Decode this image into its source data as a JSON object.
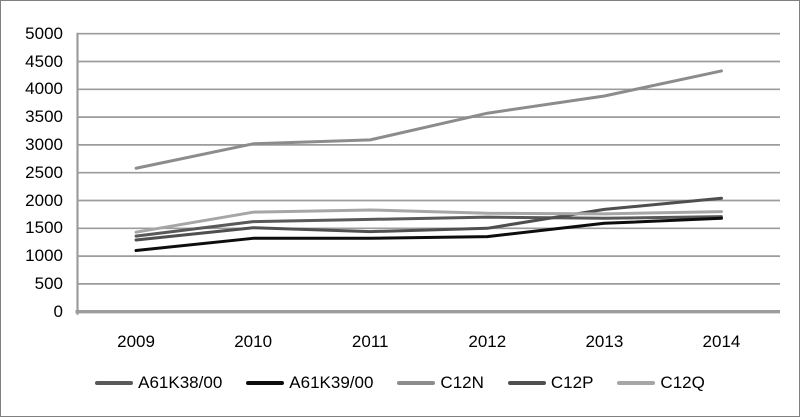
{
  "chart_data": {
    "type": "line",
    "title": "",
    "xlabel": "",
    "ylabel": "",
    "categories": [
      "2009",
      "2010",
      "2011",
      "2012",
      "2013",
      "2014"
    ],
    "series": [
      {
        "name": "A61K38/00",
        "color": "#595959",
        "values": [
          1360,
          1620,
          1660,
          1700,
          1680,
          1710
        ]
      },
      {
        "name": "A61K39/00",
        "color": "#0d0d0d",
        "values": [
          1100,
          1320,
          1320,
          1350,
          1590,
          1680
        ]
      },
      {
        "name": "C12N",
        "color": "#8c8c8c",
        "values": [
          2580,
          3020,
          3090,
          3570,
          3880,
          4330
        ]
      },
      {
        "name": "C12P",
        "color": "#4f4f4f",
        "values": [
          1290,
          1510,
          1440,
          1500,
          1840,
          2040
        ]
      },
      {
        "name": "C12Q",
        "color": "#a6a6a6",
        "values": [
          1430,
          1790,
          1830,
          1770,
          1760,
          1800
        ]
      }
    ],
    "ylim": [
      0,
      5000
    ],
    "ytick_step": 500,
    "yticks": [
      0,
      500,
      1000,
      1500,
      2000,
      2500,
      3000,
      3500,
      4000,
      4500,
      5000
    ],
    "grid": true,
    "gridline_color": "#9c9c9c",
    "axis_line_color": "#9c9c9c",
    "legend_position": "bottom"
  }
}
